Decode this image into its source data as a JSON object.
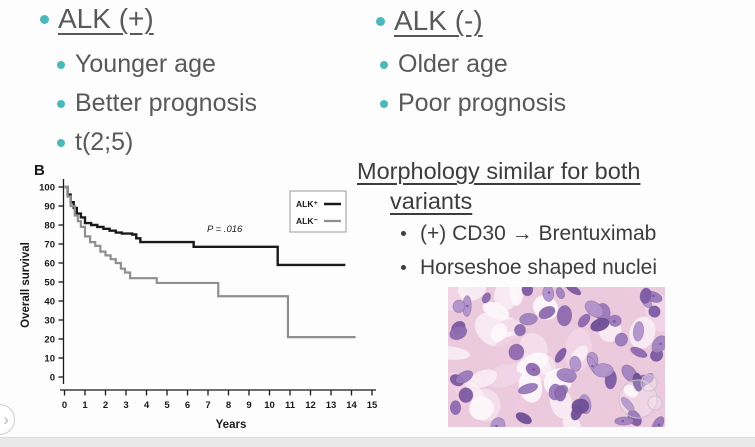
{
  "slide": {
    "bullet_color": "#4bb8ba",
    "text_color": "#595959",
    "left_column": {
      "heading": "ALK (+)",
      "items": [
        "Younger age",
        "Better prognosis",
        "t(2;5)"
      ]
    },
    "right_column": {
      "heading": "ALK (-)",
      "items": [
        "Older age",
        "Poor prognosis"
      ]
    },
    "morphology": {
      "heading_lines": [
        "Morphology similar for both",
        "variants"
      ],
      "items": [
        "(+) CD30 → Brentuximab",
        "Horseshoe shaped nuclei"
      ]
    }
  },
  "chart_data": {
    "type": "line",
    "subtype": "kaplan-meier-step",
    "panel_label": "B",
    "title": "",
    "xlabel": "Years",
    "ylabel": "Overall survival",
    "xlim": [
      0,
      15
    ],
    "ylim": [
      0,
      100
    ],
    "x_ticks": [
      0,
      1,
      2,
      3,
      4,
      5,
      6,
      7,
      8,
      9,
      10,
      11,
      12,
      13,
      14,
      15
    ],
    "y_ticks": [
      0,
      10,
      20,
      30,
      40,
      50,
      60,
      70,
      80,
      90,
      100
    ],
    "grid": false,
    "annotation": "P = .016",
    "legend_position": "upper right",
    "axis_color": "#1a1a1a",
    "series": [
      {
        "name": "ALK⁺",
        "color": "#1a1a1a",
        "width": 2.4,
        "points": [
          [
            0,
            100
          ],
          [
            0.15,
            96
          ],
          [
            0.3,
            92
          ],
          [
            0.45,
            89
          ],
          [
            0.6,
            86
          ],
          [
            0.8,
            84
          ],
          [
            1.0,
            81
          ],
          [
            1.3,
            80
          ],
          [
            1.6,
            79
          ],
          [
            1.9,
            78
          ],
          [
            2.2,
            77
          ],
          [
            2.5,
            76
          ],
          [
            2.8,
            75.5
          ],
          [
            3.3,
            75
          ],
          [
            3.5,
            73
          ],
          [
            3.7,
            71
          ],
          [
            6.3,
            68.5
          ],
          [
            10.4,
            59
          ]
        ],
        "x_end": 13.7
      },
      {
        "name": "ALK⁻",
        "color": "#8f8f8f",
        "width": 2.2,
        "points": [
          [
            0,
            100
          ],
          [
            0.15,
            95
          ],
          [
            0.3,
            90
          ],
          [
            0.5,
            85
          ],
          [
            0.65,
            82
          ],
          [
            0.8,
            79
          ],
          [
            1.0,
            74
          ],
          [
            1.25,
            71
          ],
          [
            1.5,
            69
          ],
          [
            1.75,
            66
          ],
          [
            2.0,
            64
          ],
          [
            2.25,
            62
          ],
          [
            2.5,
            60
          ],
          [
            2.75,
            57
          ],
          [
            2.95,
            55
          ],
          [
            3.2,
            52
          ],
          [
            4.5,
            49.5
          ],
          [
            7.5,
            42.5
          ],
          [
            10.9,
            21
          ]
        ],
        "x_end": 14.2
      }
    ]
  },
  "histology": {
    "description": "H&E stained tissue photomicrograph with purple nuclei",
    "background": "#eccade",
    "cytoplasm_colors": [
      "#f2d7e7",
      "#f6e2ee",
      "#fbf1f7",
      "#eec9dd"
    ],
    "gap_color": "#fdf8fb",
    "nucleus_colors": [
      "#a283c0",
      "#8f6bb0",
      "#b193cc",
      "#9a79bb",
      "#7e5ba3",
      "#6f4f96"
    ],
    "nucleus_outline": "#5d3f85",
    "nucleus_count": 58,
    "watermark_color": "#cfc3ce"
  },
  "nav": {
    "next_icon": "›"
  }
}
